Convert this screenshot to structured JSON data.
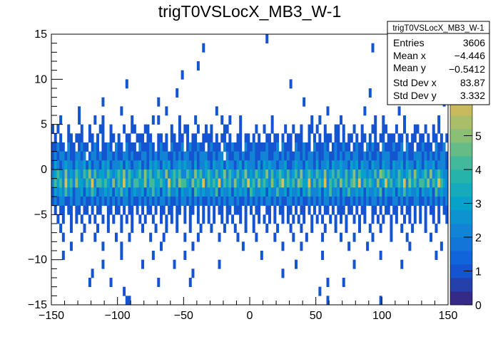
{
  "chart_data": {
    "type": "heatmap",
    "title": "trigT0VSLocX_MB3_W-1",
    "xlabel": "",
    "ylabel": "",
    "xlim": [
      -150,
      150
    ],
    "ylim": [
      -15,
      15
    ],
    "zlim": [
      0,
      8
    ],
    "x_bins": 150,
    "y_bins": 30,
    "contours": 20,
    "x_ticks": [
      -150,
      -100,
      -50,
      0,
      50,
      100,
      150
    ],
    "y_ticks": [
      -15,
      -10,
      -5,
      0,
      5,
      10,
      15
    ],
    "z_ticks": [
      0,
      1,
      2,
      3,
      4,
      5,
      6,
      7,
      8
    ],
    "palette": "kBird",
    "counts_rows_top_to_bottom": [
      "0000000000 0000000000 0000000000 0000000000 0000000000 0000000000 0000000000 0000000000 0100000000 0000000000 0000000000 0000000000 0000000000 0000000000 0000000000",
      "0000000000 0000000000 0000000000 0000000000 0000000000 0000000100 0000000000 0000000000 0000000000 0000000000 0000000000 0000000000 0100000000 0000000000 0000000000",
      "0000000000 0000000000 0000000000 0000000000 0000000000 0000000000 0000000000 0000000000 0000000000 0000000000 0000000000 0000000000 0000000000 0000000000 0000000000",
      "0000000000 0000000000 0000000000 0000000000 0000000000 0000010000 0000000000 0000000000 0000000000 0000000000 0000000000 0000000000 0000000000 0000000001 0000000000",
      "0000000000 0000000000 0000000000 0000000000 0000000001 0000000000 0000000000 0000000000 0000000000 0000000000 0000000000 0000000000 0000000010 0000000000 0000000000",
      "0000000000 0000000000 0000000010 0000000000 0000000000 0000000000 0000000000 0000000000 0000000000 1000000000 0000000000 0000000000 0000000000 0000010000 0000000000",
      "0000000000 0000000000 0000000000 0000000000 0000000100 0000000000 0000000000 0000000000 0000000000 0000000000 0000000000 0000000000 1000000000 0000000000 0000100000",
      "0000000000 0000000001 0000000000 0000000000 1000000000 0000000000 0000000000 0000000000 0000000000 0000010000 0000000000 0000000000 0000000000 0000000000 0000000010",
      "0000000000 1000000000 0000001000 0000000000 0001000000 0000000000 0010000000 0000000000 0000000000 0000000000 0000100000 0000000010 0000000000 0100000000 0000000000",
      "0001000000 1000001001 0000000000 1000000010 1000000010 0000100000 0000100100 0100000000 0001000000 0000000010 0100000001 0000000000 0010010000 0001000000 0000001000",
      "1010001000 0100100011 0010000100 1100011000 0000010010 1100010010 1000011000 0100000100 1001000010 0100100110 1001000110 1000100100 0110011000 1001000110 0100101000",
      "0101001101 1100110101 0011010011 0011101100 1101011011 0101100111 1010110100 1101101010 0110110101 1011100101 0101110110 1011010110 1010110111 0110101101 1010110101",
      "1121102110 1211012101 1210211021 1102111210 1211021112 0121121101 2111021121 1102112111 1211120211 1021121102 1112101211 2110121102 1211021112 1120211011 2111021120",
      "1212212112 2120122121 1221211221 2111221212 1222112121 2211212221 1212202112 2121122112 2211221212 1122121221 2112211212 1221221121 2112122211 1221211222 1212121221",
      "1321232213 2231312213 2312223132 1223121323 2132312232 3221312232 1322313221 2313222131 3232212231 1232213221 3122313223 2213231322 1322132213 2231322132 1322312221",
      "2343252324 3243524233 2432343524 3234253423 4325234342 2432534234 3242352432 4235232432 3524234324 2342523432 4325234243 2423524332 3242543423 2432342532 3425234322",
      "2434263425 3324362443 4325243634 2443352443 3432634254 4325343624 3436243425 3243634253 4325324634 3425433624 2436243425 3424536243 4325236342 3436253424 4352436432",
      "1323242312 2313243122 3231324231 2322313242 3132422313 2231432322 3241322313 2323143223 3132242231 3223132422 2313242231 3242232313 2232413223 1324232231 3223142322",
      "1212211212 2121121212 1212121221 2112121212 1221211212 2121212112 1212121221 2112121212 1221212112 2121211212 1212212121 2112121212 1221212112 2121211221 1212121212",
      "0101101101 1011010110 0110110101 1010101101 0110110110 1011010101 0101101101 1101010110 0110101101 1010110101 0101101011 1011010110 0110101101 1010110101 0101101011",
      "0010100101 0100101001 0101001010 1001010010 0101010100 1010010101 0100101010 0101001010 1010100101 0101010010 1010010101 0100101010 0101010010 1001010101 0100101001",
      "0001000100 0010000100 0100001000 1000100001 0001000100 0010001000 1000010001 0001001000 0100010000 1000100010 0001000100 0100001000 1000100010 0010001000 0100010000",
      "0000100000 0100001000 0000100001 0000000100 0010000000 1000010000 0001000000 1000000100 0000100000 0100001000 0010000001 0000100000 0100000010 0000100000 0001000000",
      "0000000100 0000000001 0000001000 0000000000 0100000000 0001000000 0000000000 0010000000 0000000100 0000100000 0000000000 0010000001 0000000000 0000010000 0000000100",
      "0000100000 0000000000 0000001000 0000000010 0000000000 1000000000 0000000000 0000000001 0000000000 0000000000 0010000000 0000000000 0000100000 0000000000 0000010000",
      "0000000000 0000000001 0000000000 0000100000 0000001000 0000000000 0001000000 0000000000 0000000000 0010000000 0000000000 0000100000 0000000000 0010000000 0000000000",
      "0000000000 0000010000 0000000000 0000000000 0000000000 0001000000 0000000000 0000000000 0000000100 0000000000 0000000000 0000000000 0000000000 0000000000 0000000000",
      "0000000000 0000100000 0010000000 0000000000 1000000000 0010000000 0000000000 0000000000 0000000000 0000000000 0000100000 1000000000 0000000000 0000000000 0000000000",
      "0000000000 0000000000 0000000100 0000000000 0000000000 0000000000 0000000000 0000000000 0000000000 0000000000 0100000000 0000000000 0000000000 0000000000 0000000000",
      "0000000000 0000000000 0000000011 0000000000 0000000000 0000000000 0000000000 0000000000 0000000000 0000000000 0000100000 0000000000 0000100000 0000000000 0000000000"
    ],
    "stats": {
      "title": "trigT0VSLocX_MB3_W-1",
      "rows": [
        {
          "label": "Entries",
          "value": "3606"
        },
        {
          "label": "Mean x",
          "value": "−4.446"
        },
        {
          "label": "Mean y",
          "value": "−0.5412"
        },
        {
          "label": "Std Dev x",
          "value": "83.87"
        },
        {
          "label": "Std Dev y",
          "value": "3.332"
        }
      ]
    }
  }
}
